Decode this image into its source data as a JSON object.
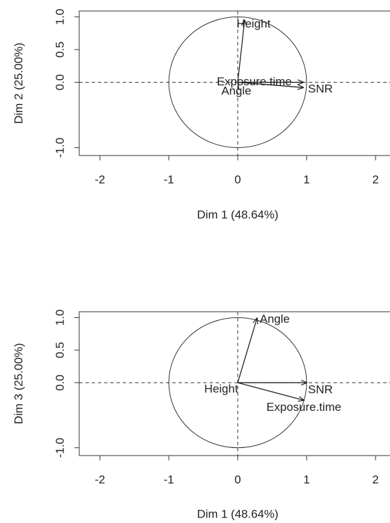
{
  "chart_data": [
    {
      "type": "vector",
      "xlabel": "Dim 1 (48.64%)",
      "ylabel": "Dim 2 (25.00%)",
      "labels": [
        "Height",
        "Exposure.time",
        "Angle",
        "SNR"
      ],
      "x": [
        0.1,
        0.95,
        0.02,
        0.95
      ],
      "y": [
        0.95,
        0.0,
        -0.12,
        -0.08
      ],
      "xlim": [
        -2.3,
        2.3
      ],
      "ylim": [
        -1.12,
        1.09
      ],
      "xticks": [
        -2,
        -1,
        0,
        1,
        2
      ],
      "yticks": [
        {
          "value": -1,
          "label": "-1.0"
        },
        {
          "value": 0,
          "label": "0.0"
        },
        0.5,
        {
          "value": 1,
          "label": "1.0"
        }
      ]
    },
    {
      "type": "vector",
      "xlabel": "Dim 1 (48.64%)",
      "ylabel": "Dim 3 (25.00%)",
      "labels": [
        "Angle",
        "Height",
        "SNR",
        "Exposure.time"
      ],
      "x": [
        0.28,
        0.0,
        1.0,
        0.96
      ],
      "y": [
        0.99,
        0.0,
        0.0,
        -0.27
      ],
      "xlim": [
        -2.3,
        2.3
      ],
      "ylim": [
        -1.12,
        1.09
      ],
      "xticks": [
        -2,
        -1,
        0,
        1,
        2
      ],
      "yticks": [
        {
          "value": -1,
          "label": "-1.0"
        },
        {
          "value": 0,
          "label": "0.0"
        },
        0.5,
        {
          "value": 1,
          "label": "1.0"
        }
      ]
    }
  ]
}
